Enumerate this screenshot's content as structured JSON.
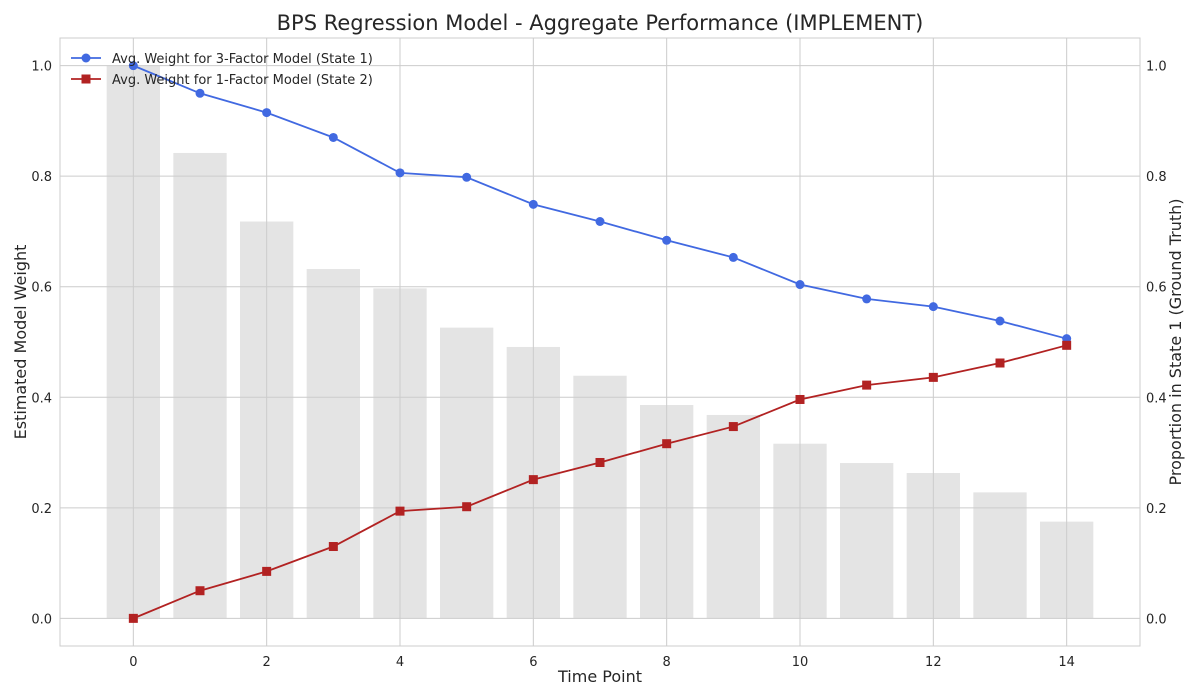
{
  "chart_data": {
    "type": "line",
    "title": "BPS Regression Model - Aggregate Performance (IMPLEMENT)",
    "xlabel": "Time Point",
    "ylabel": "Estimated Model Weight",
    "y2label": "Proportion in State 1 (Ground Truth)",
    "x": [
      0,
      1,
      2,
      3,
      4,
      5,
      6,
      7,
      8,
      9,
      10,
      11,
      12,
      13,
      14
    ],
    "xlim": [
      -1.1,
      15.1
    ],
    "ylim": [
      -0.05,
      1.05
    ],
    "y2lim": [
      -0.05,
      1.05
    ],
    "xticks": [
      "0",
      "2",
      "4",
      "6",
      "8",
      "10",
      "12",
      "14"
    ],
    "yticks": [
      "0.0",
      "0.2",
      "0.4",
      "0.6",
      "0.8",
      "1.0"
    ],
    "y2ticks": [
      "0.0",
      "0.2",
      "0.4",
      "0.6",
      "0.8",
      "1.0"
    ],
    "grid": true,
    "legend_position": "top-left",
    "series": [
      {
        "name": "Avg. Weight for 3-Factor Model (State 1)",
        "kind": "line",
        "marker": "circle",
        "color": "#4169e1",
        "values": [
          1.0,
          0.95,
          0.915,
          0.87,
          0.806,
          0.798,
          0.749,
          0.718,
          0.684,
          0.653,
          0.604,
          0.578,
          0.564,
          0.538,
          0.506
        ]
      },
      {
        "name": "Avg. Weight for 1-Factor Model (State 2)",
        "kind": "line",
        "marker": "square",
        "color": "#b22222",
        "values": [
          0.0,
          0.05,
          0.085,
          0.13,
          0.194,
          0.202,
          0.251,
          0.282,
          0.316,
          0.347,
          0.396,
          0.422,
          0.436,
          0.462,
          0.494
        ]
      },
      {
        "kind": "bar",
        "axis": "right",
        "color": "#e4e4e4",
        "values": [
          1.0,
          0.842,
          0.718,
          0.632,
          0.597,
          0.526,
          0.491,
          0.439,
          0.386,
          0.368,
          0.316,
          0.281,
          0.263,
          0.228,
          0.175
        ]
      }
    ]
  }
}
